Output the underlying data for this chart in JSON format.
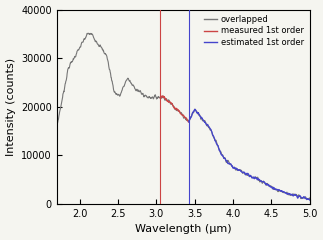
{
  "title": "",
  "xlabel": "Wavelength (μm)",
  "ylabel": "Intensity (counts)",
  "xlim": [
    1.7,
    5.0
  ],
  "ylim": [
    0,
    40000
  ],
  "yticks": [
    0,
    10000,
    20000,
    30000,
    40000
  ],
  "xticks": [
    2.0,
    2.5,
    3.0,
    3.5,
    4.0,
    4.5,
    5.0
  ],
  "vline_red": 3.05,
  "vline_blue": 3.42,
  "legend_labels": [
    "overlapped",
    "measured 1st order",
    "estimated 1st order"
  ],
  "legend_colors": [
    "#888888",
    "#cc4444",
    "#4444cc"
  ],
  "bg_color": "#f5f5f0",
  "gray_color": "#777777"
}
